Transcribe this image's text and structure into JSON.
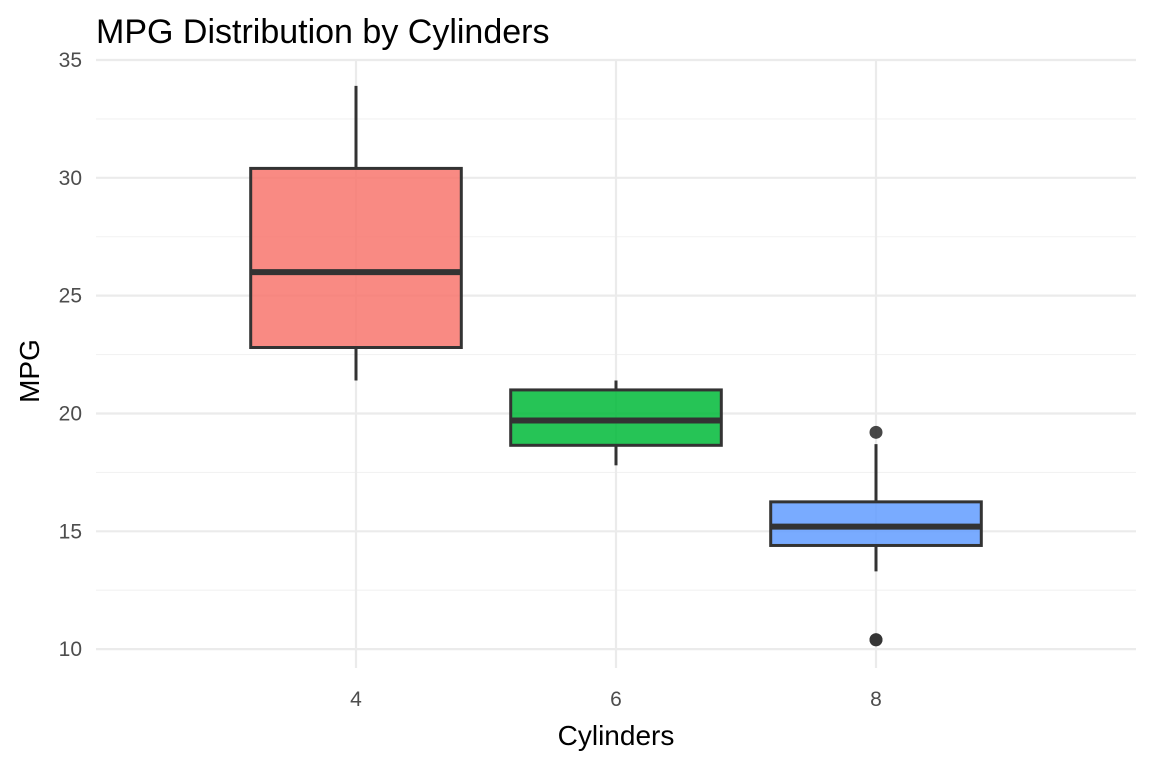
{
  "chart_data": {
    "type": "boxplot",
    "title": "MPG Distribution by Cylinders",
    "xlabel": "Cylinders",
    "ylabel": "MPG",
    "categories": [
      "4",
      "6",
      "8"
    ],
    "ylim": [
      9.2,
      35
    ],
    "yticks": [
      10,
      15,
      20,
      25,
      30,
      35
    ],
    "grid": true,
    "legend": "none",
    "boxes": [
      {
        "category": "4",
        "min": 21.4,
        "q1": 22.8,
        "median": 26.0,
        "q3": 30.4,
        "max": 33.9,
        "outliers": [],
        "color": "#F8766D"
      },
      {
        "category": "6",
        "min": 17.8,
        "q1": 18.65,
        "median": 19.7,
        "q3": 21.0,
        "max": 21.4,
        "outliers": [],
        "color": "#00BA38"
      },
      {
        "category": "8",
        "min": 13.3,
        "q1": 14.4,
        "median": 15.2,
        "q3": 16.25,
        "max": 18.7,
        "outliers": [
          10.4,
          10.4,
          19.2
        ],
        "color": "#619CFF"
      }
    ]
  }
}
